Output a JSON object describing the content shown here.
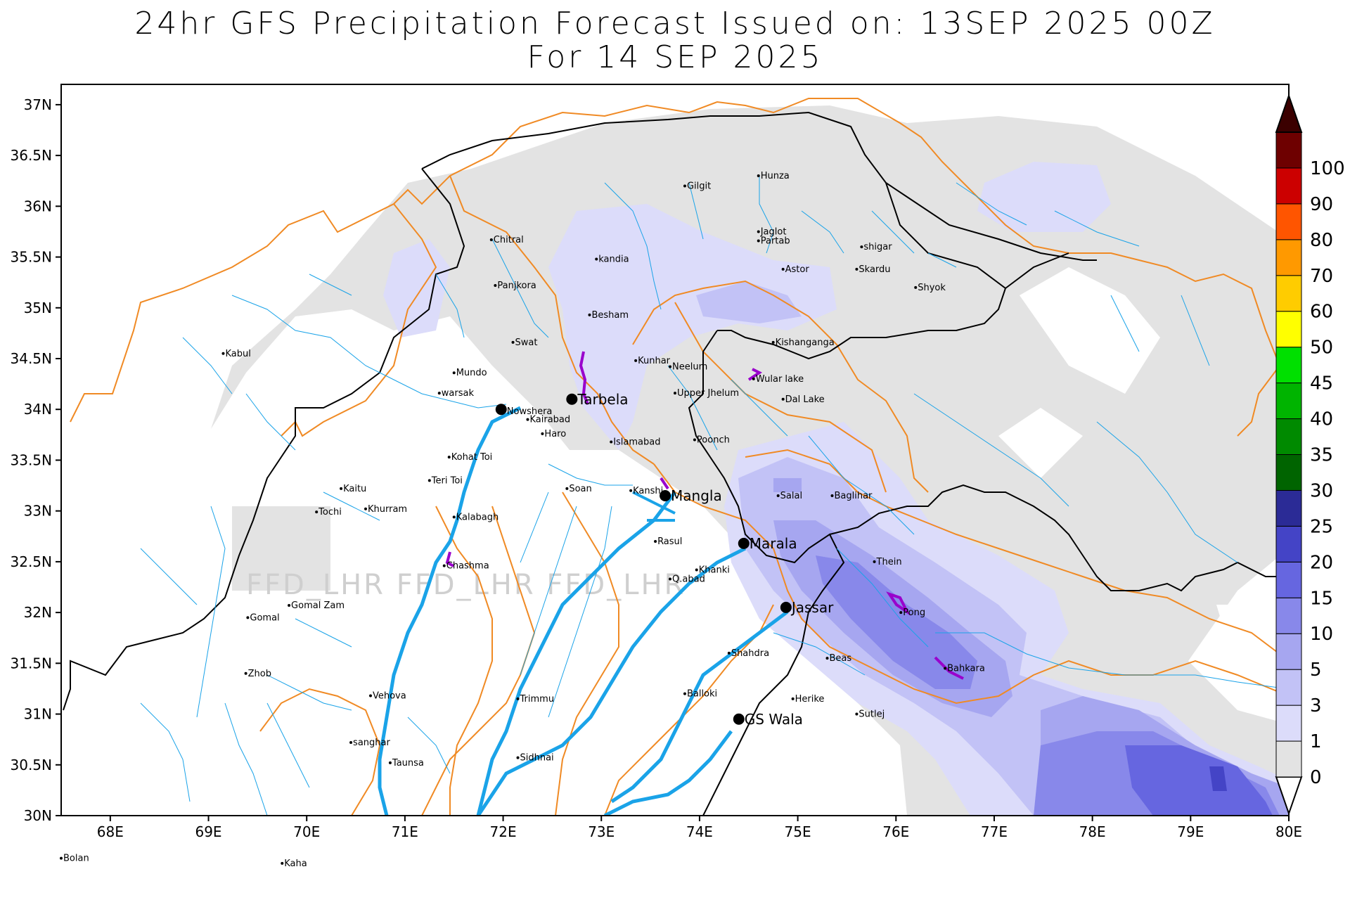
{
  "title": {
    "line1": "24hr GFS Precipitation Forecast Issued on:  13SEP 2025 00Z",
    "line2": "For 14 SEP 2025"
  },
  "watermark": "FFD_LHR FFD_LHR FFD_LHR",
  "axes": {
    "lon_min": 67.5,
    "lon_max": 80,
    "lat_min": 30,
    "lat_max": 37.2,
    "x_ticks": [
      {
        "v": 68,
        "label": "68E"
      },
      {
        "v": 69,
        "label": "69E"
      },
      {
        "v": 70,
        "label": "70E"
      },
      {
        "v": 71,
        "label": "71E"
      },
      {
        "v": 72,
        "label": "72E"
      },
      {
        "v": 73,
        "label": "73E"
      },
      {
        "v": 74,
        "label": "74E"
      },
      {
        "v": 75,
        "label": "75E"
      },
      {
        "v": 76,
        "label": "76E"
      },
      {
        "v": 77,
        "label": "77E"
      },
      {
        "v": 78,
        "label": "78E"
      },
      {
        "v": 79,
        "label": "79E"
      },
      {
        "v": 80,
        "label": "80E"
      }
    ],
    "y_ticks": [
      {
        "v": 30,
        "label": "30N"
      },
      {
        "v": 30.5,
        "label": "30.5N"
      },
      {
        "v": 31,
        "label": "31N"
      },
      {
        "v": 31.5,
        "label": "31.5N"
      },
      {
        "v": 32,
        "label": "32N"
      },
      {
        "v": 32.5,
        "label": "32.5N"
      },
      {
        "v": 33,
        "label": "33N"
      },
      {
        "v": 33.5,
        "label": "33.5N"
      },
      {
        "v": 34,
        "label": "34N"
      },
      {
        "v": 34.5,
        "label": "34.5N"
      },
      {
        "v": 35,
        "label": "35N"
      },
      {
        "v": 35.5,
        "label": "35.5N"
      },
      {
        "v": 36,
        "label": "36N"
      },
      {
        "v": 36.5,
        "label": "36.5N"
      },
      {
        "v": 37,
        "label": "37N"
      }
    ]
  },
  "colorbar": {
    "levels": [
      {
        "label": "0",
        "color": "#e3e3e3"
      },
      {
        "label": "1",
        "color": "#dcdcfa"
      },
      {
        "label": "3",
        "color": "#c2c2f6"
      },
      {
        "label": "5",
        "color": "#a6a6f0"
      },
      {
        "label": "10",
        "color": "#8888ea"
      },
      {
        "label": "15",
        "color": "#6666e0"
      },
      {
        "label": "20",
        "color": "#4444c6"
      },
      {
        "label": "25",
        "color": "#2b2b96"
      },
      {
        "label": "30",
        "color": "#006400"
      },
      {
        "label": "35",
        "color": "#008a00"
      },
      {
        "label": "40",
        "color": "#00b400"
      },
      {
        "label": "45",
        "color": "#00e000"
      },
      {
        "label": "50",
        "color": "#ffff00"
      },
      {
        "label": "60",
        "color": "#ffcc00"
      },
      {
        "label": "70",
        "color": "#ff9900"
      },
      {
        "label": "80",
        "color": "#ff5500"
      },
      {
        "label": "90",
        "color": "#cc0000"
      },
      {
        "label": "100",
        "color": "#6e0000"
      }
    ],
    "top_color": "#3b0000"
  },
  "dams": [
    {
      "name": "Tarbela",
      "lon": 72.7,
      "lat": 34.1
    },
    {
      "name": "Mangla",
      "lon": 73.65,
      "lat": 33.15
    },
    {
      "name": "Marala",
      "lon": 74.45,
      "lat": 32.68
    },
    {
      "name": "Jassar",
      "lon": 74.88,
      "lat": 32.05
    },
    {
      "name": "GS Wala",
      "lon": 74.4,
      "lat": 30.95
    },
    {
      "name": "Nowshera",
      "lon": 71.98,
      "lat": 34.0
    }
  ],
  "places": [
    {
      "name": "Hunza",
      "lon": 74.6,
      "lat": 36.3
    },
    {
      "name": "Gilgit",
      "lon": 73.85,
      "lat": 36.2
    },
    {
      "name": "Jaglot",
      "lon": 74.6,
      "lat": 35.75
    },
    {
      "name": "Partab",
      "lon": 74.6,
      "lat": 35.66
    },
    {
      "name": "shigar",
      "lon": 75.65,
      "lat": 35.6
    },
    {
      "name": "Chitral",
      "lon": 71.88,
      "lat": 35.67
    },
    {
      "name": "kandia",
      "lon": 72.95,
      "lat": 35.48
    },
    {
      "name": "Astor",
      "lon": 74.85,
      "lat": 35.38
    },
    {
      "name": "Skardu",
      "lon": 75.6,
      "lat": 35.38
    },
    {
      "name": "Shyok",
      "lon": 76.2,
      "lat": 35.2
    },
    {
      "name": "Panjkora",
      "lon": 71.92,
      "lat": 35.22
    },
    {
      "name": "Besham",
      "lon": 72.88,
      "lat": 34.93
    },
    {
      "name": "Swat",
      "lon": 72.1,
      "lat": 34.66
    },
    {
      "name": "Kishanganga",
      "lon": 74.75,
      "lat": 34.66
    },
    {
      "name": "Kabul",
      "lon": 69.15,
      "lat": 34.55
    },
    {
      "name": "Kunhar",
      "lon": 73.35,
      "lat": 34.48
    },
    {
      "name": "Neelum",
      "lon": 73.7,
      "lat": 34.42
    },
    {
      "name": "Mundo",
      "lon": 71.5,
      "lat": 34.36
    },
    {
      "name": "Wular lake",
      "lon": 74.55,
      "lat": 34.3
    },
    {
      "name": "warsak",
      "lon": 71.35,
      "lat": 34.16
    },
    {
      "name": "Upper Jhelum",
      "lon": 73.75,
      "lat": 34.16
    },
    {
      "name": "Dal Lake",
      "lon": 74.85,
      "lat": 34.1
    },
    {
      "name": "Kairabad",
      "lon": 72.25,
      "lat": 33.9
    },
    {
      "name": "Haro",
      "lon": 72.4,
      "lat": 33.76
    },
    {
      "name": "Islamabad",
      "lon": 73.1,
      "lat": 33.68
    },
    {
      "name": "Poonch",
      "lon": 73.95,
      "lat": 33.7
    },
    {
      "name": "Kohat Toi",
      "lon": 71.45,
      "lat": 33.53
    },
    {
      "name": "Teri Toi",
      "lon": 71.25,
      "lat": 33.3
    },
    {
      "name": "Soan",
      "lon": 72.65,
      "lat": 33.22
    },
    {
      "name": "Kanshi",
      "lon": 73.3,
      "lat": 33.2
    },
    {
      "name": "Salal",
      "lon": 74.8,
      "lat": 33.15
    },
    {
      "name": "Baglihar",
      "lon": 75.35,
      "lat": 33.15
    },
    {
      "name": "Kaitu",
      "lon": 70.35,
      "lat": 33.22
    },
    {
      "name": "Tochi",
      "lon": 70.1,
      "lat": 32.99
    },
    {
      "name": "Khurram",
      "lon": 70.6,
      "lat": 33.02
    },
    {
      "name": "Kalabagh",
      "lon": 71.5,
      "lat": 32.94
    },
    {
      "name": "Rasul",
      "lon": 73.55,
      "lat": 32.7
    },
    {
      "name": "Chashma",
      "lon": 71.4,
      "lat": 32.46
    },
    {
      "name": "Khanki",
      "lon": 73.97,
      "lat": 32.42
    },
    {
      "name": "Thein",
      "lon": 75.78,
      "lat": 32.5
    },
    {
      "name": "Q.abad",
      "lon": 73.7,
      "lat": 32.33
    },
    {
      "name": "Gomal Zam",
      "lon": 69.82,
      "lat": 32.07
    },
    {
      "name": "Pong",
      "lon": 76.05,
      "lat": 32.0
    },
    {
      "name": "Gomal",
      "lon": 69.4,
      "lat": 31.95
    },
    {
      "name": "Shahdra",
      "lon": 74.3,
      "lat": 31.6
    },
    {
      "name": "Beas",
      "lon": 75.3,
      "lat": 31.55
    },
    {
      "name": "Bahkara",
      "lon": 76.5,
      "lat": 31.45
    },
    {
      "name": "Zhob",
      "lon": 69.38,
      "lat": 31.4
    },
    {
      "name": "Balloki",
      "lon": 73.85,
      "lat": 31.2
    },
    {
      "name": "Vehova",
      "lon": 70.65,
      "lat": 31.18
    },
    {
      "name": "Trimmu",
      "lon": 72.15,
      "lat": 31.15
    },
    {
      "name": "Herike",
      "lon": 74.95,
      "lat": 31.15
    },
    {
      "name": "Sutlej",
      "lon": 75.6,
      "lat": 31.0
    },
    {
      "name": "sanghar",
      "lon": 70.45,
      "lat": 30.72
    },
    {
      "name": "Sidhnai",
      "lon": 72.15,
      "lat": 30.57
    },
    {
      "name": "Taunsa",
      "lon": 70.85,
      "lat": 30.52
    },
    {
      "name": "Bolan",
      "lon": 67.5,
      "lat": 29.58
    },
    {
      "name": "Kaha",
      "lon": 69.75,
      "lat": 29.53
    }
  ]
}
